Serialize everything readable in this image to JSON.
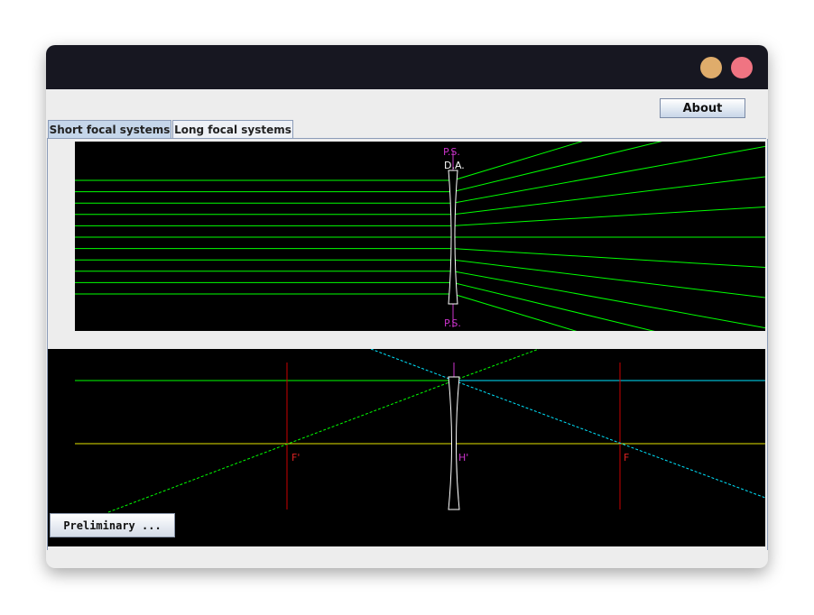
{
  "window": {
    "controls": {
      "minimize_color": "#dfac6b",
      "close_color": "#f07482"
    }
  },
  "toolbar": {
    "about_label": "About"
  },
  "tabs": [
    {
      "label": "Short focal systems",
      "selected": true
    },
    {
      "label": "Long focal systems",
      "selected": false
    }
  ],
  "top_diagram": {
    "labels": {
      "principal_plane_top": "P.S.",
      "diaphragm": "D.A.",
      "principal_plane_bottom": "P.S."
    },
    "colors": {
      "rays": "#00ff00",
      "lens": "#ffffff",
      "principal_plane": "#cc33cc",
      "background": "#000000"
    }
  },
  "bottom_diagram": {
    "labels": {
      "image_focus": "F'",
      "principal_point": "H'",
      "object_focus": "F"
    },
    "colors": {
      "axis": "#e5e500",
      "ray_green": "#00ff00",
      "ray_cyan": "#00e5ff",
      "focal_lines": "#cc0000",
      "principal_line": "#cc33cc",
      "lens": "#ffffff"
    }
  },
  "buttons": {
    "preliminary_label": "Preliminary ..."
  }
}
